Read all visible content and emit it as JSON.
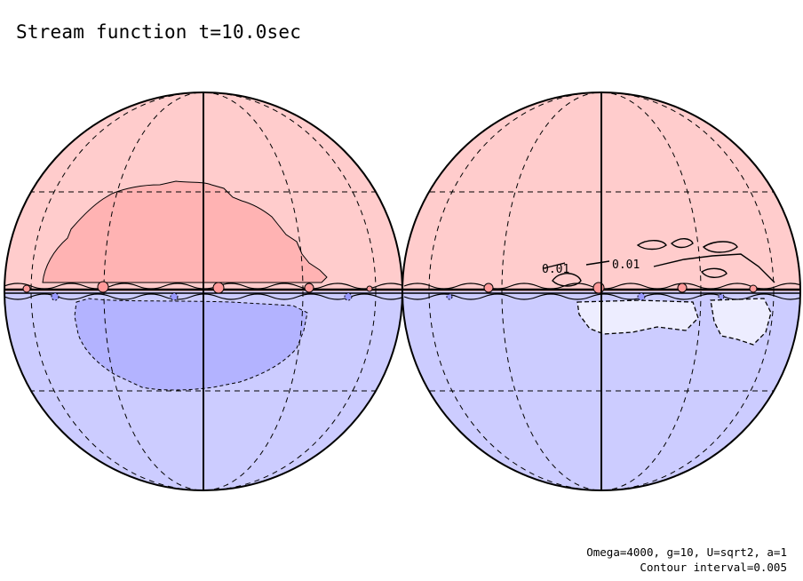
{
  "title": "Stream function t=10.0sec",
  "params": {
    "line1": "Omega=4000, g=10, U=sqrt2, a=1",
    "line2": "Contour interval=0.005"
  },
  "contour_labels": [
    "0.01",
    "0.01"
  ],
  "colors": {
    "positive_fill": "#ffcccc",
    "positive_strong": "#ffb3b3",
    "negative_fill": "#ccccff",
    "negative_strong": "#b3b3ff",
    "negative_weak": "#ededff",
    "outline": "#000000"
  }
}
